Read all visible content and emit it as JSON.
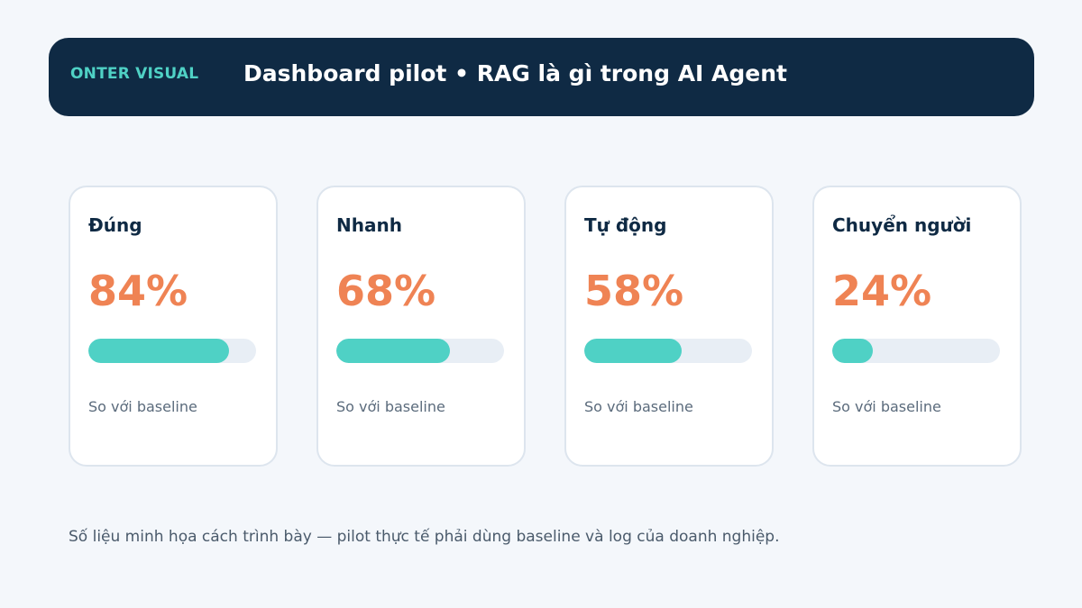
{
  "header": {
    "brand": "ONTER VISUAL",
    "title": "Dashboard pilot • RAG là gì trong AI Agent"
  },
  "metrics": [
    {
      "label": "Đúng",
      "value_text": "84%",
      "progress": 0.84,
      "note": "So với baseline"
    },
    {
      "label": "Nhanh",
      "value_text": "68%",
      "progress": 0.68,
      "note": "So với baseline"
    },
    {
      "label": "Tự động",
      "value_text": "58%",
      "progress": 0.58,
      "note": "So với baseline"
    },
    {
      "label": "Chuyển người",
      "value_text": "24%",
      "progress": 0.24,
      "note": "So với baseline"
    }
  ],
  "footnote": "Số liệu minh họa cách trình bày — pilot thực tế phải dùng baseline và log của doanh nghiệp.",
  "colors": {
    "header_bg": "#0f2a44",
    "accent": "#4fd1c5",
    "value": "#ef8354"
  }
}
